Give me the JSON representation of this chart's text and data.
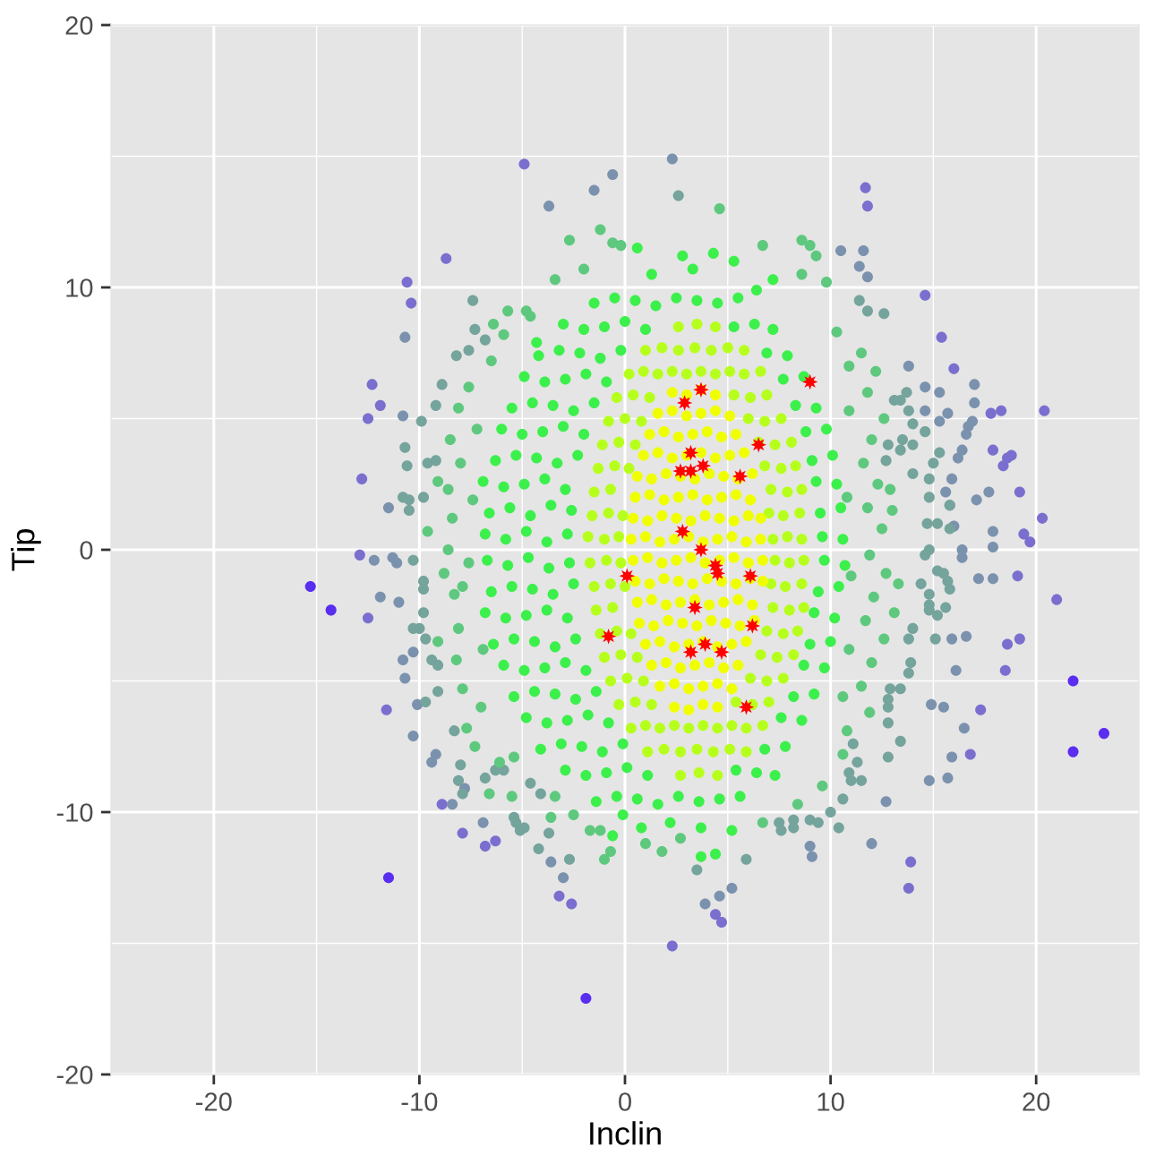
{
  "chart_data": {
    "type": "scatter",
    "xlabel": "Inclin",
    "ylabel": "Tip",
    "xlim": [
      -25,
      25
    ],
    "ylim": [
      -20,
      20
    ],
    "xticks": [
      -20,
      -10,
      0,
      10,
      20
    ],
    "yticks": [
      -20,
      -10,
      0,
      10,
      20
    ],
    "grid": true,
    "marker": "circle",
    "series": [
      {
        "color": "#5a2ef0",
        "x": [
          -15.3,
          -14.3,
          -11.5,
          -1.9,
          21.8,
          23.3,
          21.8
        ],
        "values": [
          -1.4,
          -2.3,
          -12.5,
          -17.1,
          -7.7,
          -7.0,
          -5.0
        ]
      },
      {
        "color": "#7a6fcf",
        "x": [
          -8.7,
          -10.6,
          -10.4,
          -12.3,
          -11.9,
          -12.5,
          -12.8,
          -12.9,
          -12.5,
          -11.6,
          -4.9,
          2.3,
          -3.2,
          -2.6,
          4.4,
          4.7,
          11.7,
          11.8,
          14.6,
          15.4,
          16.0,
          20.4,
          17.8,
          18.3,
          17.9,
          18.8,
          18.4,
          18.6,
          19.2,
          20.3,
          19.4,
          19.7,
          19.1,
          21.0,
          18.6,
          19.2,
          18.5,
          17.3,
          13.9,
          13.8,
          -8.9,
          -7.9,
          -6.8,
          -6.3,
          16.8
        ],
        "values": [
          11.1,
          10.2,
          9.4,
          6.3,
          5.5,
          5.0,
          2.7,
          -0.2,
          -2.6,
          -6.1,
          14.7,
          -15.1,
          -13.2,
          -13.5,
          -13.9,
          -14.2,
          13.8,
          13.1,
          9.7,
          8.1,
          6.9,
          5.3,
          5.2,
          5.3,
          3.8,
          3.6,
          3.2,
          3.5,
          2.2,
          1.2,
          0.6,
          0.3,
          -1.0,
          -1.9,
          -3.6,
          -3.4,
          -4.6,
          -6.1,
          -11.9,
          -12.9,
          -9.7,
          -10.8,
          -11.3,
          -11.1,
          -7.8
        ]
      },
      {
        "color": "#7b92ae",
        "x": [
          -10.7,
          -10.8,
          -11.5,
          -11.3,
          -11.1,
          -12.2,
          -11.9,
          -11.0,
          -10.3,
          -10.8,
          -10.7,
          -10.1,
          -10.3,
          -9.2,
          -9.4,
          -8.4,
          -7.8,
          -3.7,
          -1.5,
          -0.6,
          2.3,
          -3.0,
          -3.6,
          -6.9,
          5.2,
          4.6,
          3.9,
          10.5,
          11.6,
          11.4,
          11.8,
          13.8,
          14.6,
          15.3,
          17.0,
          17.0,
          15.7,
          15.3,
          14.6,
          16.7,
          16.6,
          16.9,
          16.4,
          16.2,
          17.7,
          17.1,
          15.9,
          15.6,
          15.8,
          16.0,
          17.9,
          17.9,
          16.4,
          16.4,
          17.2,
          17.9,
          15.9,
          16.6,
          16.1,
          14.9,
          15.5,
          16.5,
          15.9,
          14.8,
          15.7,
          12.7,
          12.0,
          9.0,
          9.1
        ],
        "values": [
          8.1,
          5.1,
          1.6,
          -0.3,
          -0.5,
          -0.4,
          -1.8,
          -2.0,
          -3.9,
          -4.2,
          -4.9,
          -5.9,
          -7.1,
          -7.8,
          -8.1,
          -9.7,
          -9.1,
          13.1,
          13.7,
          14.3,
          14.9,
          -12.5,
          -11.9,
          -10.4,
          -12.9,
          -13.2,
          -13.5,
          11.4,
          11.4,
          10.8,
          10.4,
          7.0,
          6.2,
          6.0,
          6.3,
          5.6,
          5.2,
          4.9,
          5.3,
          4.7,
          4.4,
          4.9,
          3.8,
          3.5,
          2.2,
          1.9,
          2.7,
          2.2,
          1.7,
          0.9,
          0.7,
          0.1,
          0.0,
          -0.3,
          -1.1,
          -1.1,
          -3.4,
          -3.3,
          -4.6,
          -5.9,
          -6.0,
          -6.8,
          -7.9,
          -8.8,
          -8.7,
          -9.6,
          -11.2,
          -11.3,
          -11.7
        ]
      },
      {
        "color": "#74a49c",
        "x": [
          -8.2,
          -7.6,
          -8.9,
          -9.9,
          -9.2,
          -10.7,
          -10.6,
          -10.8,
          -10.5,
          -10.5,
          -9.8,
          -9.6,
          -9.2,
          -10.3,
          -9.8,
          -9.8,
          -9.8,
          -10.3,
          -10.0,
          -9.7,
          -9.4,
          -9.1,
          -9.1,
          -9.7,
          -8.3,
          -8.0,
          -8.1,
          -7.9,
          -7.4,
          -7.3,
          -6.8,
          2.6,
          -6.8,
          -6.3,
          -5.9,
          -5.4,
          -5.3,
          -5.1,
          -4.9,
          -4.6,
          -4.1,
          -3.7,
          -4.2,
          -2.7,
          3.5,
          5.9,
          8.2,
          9.0,
          9.4,
          10.4,
          10.0,
          10.6,
          10.9,
          11.0,
          11.5,
          11.3,
          11.1,
          12.8,
          13.4,
          12.8,
          12.8,
          12.8,
          12.9,
          13.4,
          13.8,
          15.5,
          15.8,
          14.8,
          14.8,
          15.2,
          15.6,
          15.1,
          14.8,
          15.2,
          15.7,
          14.4,
          14.0,
          13.8,
          13.9,
          15.3,
          15.0,
          14.8,
          14.7,
          15.8,
          14.0,
          14.6,
          13.8,
          14.0,
          13.7,
          13.1,
          13.4,
          13.5,
          14.0,
          13.4,
          12.8,
          12.7,
          14.8,
          15.2,
          15.8,
          14.8,
          14.6,
          11.4,
          11.8,
          12.6,
          7.5,
          8.2,
          7.6
        ],
        "values": [
          7.4,
          7.6,
          6.3,
          4.9,
          5.5,
          3.9,
          3.2,
          2.0,
          1.9,
          1.5,
          2.0,
          3.3,
          3.4,
          -0.4,
          -1.2,
          -1.5,
          -2.4,
          -3.0,
          -3.0,
          -3.4,
          -4.2,
          -4.4,
          -5.4,
          -5.8,
          -6.9,
          -8.2,
          -8.8,
          -9.3,
          9.5,
          8.4,
          8.0,
          13.5,
          -8.7,
          -8.4,
          -8.4,
          -10.2,
          -10.4,
          -10.7,
          -10.6,
          -8.9,
          -9.3,
          -10.8,
          -11.4,
          -11.8,
          -12.2,
          -11.8,
          -10.3,
          -10.3,
          -10.4,
          -10.6,
          -10.0,
          -9.5,
          -8.5,
          -8.8,
          -8.8,
          -8.1,
          -7.4,
          -7.9,
          -7.3,
          -6.6,
          -6.0,
          -5.7,
          -5.3,
          -5.3,
          -4.7,
          -0.9,
          -1.5,
          -2.1,
          -2.3,
          -2.5,
          -2.2,
          -3.4,
          -1.7,
          -0.8,
          -1.2,
          -1.3,
          -3.0,
          -3.4,
          -4.3,
          3.7,
          3.3,
          2.7,
          1.0,
          1.7,
          2.9,
          4.5,
          5.3,
          4.8,
          6.0,
          5.7,
          5.7,
          4.2,
          4.0,
          3.8,
          4.0,
          3.4,
          2.0,
          1.0,
          0.8,
          0.0,
          -0.2,
          9.5,
          9.1,
          9.0,
          -10.4,
          -10.6,
          -10.7
        ]
      },
      {
        "color": "#5ec97e",
        "x": [
          -8.5,
          -8.1,
          -9.1,
          -8.6,
          -9.6,
          -9.1,
          -7.7,
          -2.7,
          -1.2,
          -0.6,
          -0.2,
          4.6,
          6.7,
          -5.7,
          -4.8,
          -4.6,
          -5.9,
          -1.0,
          -0.7,
          -1.7,
          -1.2,
          1.0,
          1.8,
          8.6,
          9.0,
          9.3,
          -8.3,
          -7.9,
          -8.1,
          -5.4,
          -5.5,
          -3.4,
          -2.5,
          11.5,
          12.2,
          11.8,
          12.6,
          12.0,
          11.6,
          12.3,
          11.8,
          12.5,
          11.9,
          12.7,
          12.1,
          11.7,
          12.6,
          12.0,
          11.5,
          11.9,
          10.8,
          10.3,
          10.9,
          13.0,
          13.3,
          13.1,
          12.9,
          10.6,
          9.6,
          -7.3,
          -6.6,
          -7.6,
          -6.5,
          -8.6,
          -8.8,
          -8.4,
          -8.0,
          -8.2,
          -7.9,
          9.8,
          -7.6,
          -7.4,
          -7.2,
          -6.9,
          -7.0,
          10.9,
          10.8,
          11.0,
          10.9,
          10.6,
          -6.1,
          -3.6,
          2.7,
          6.7,
          8.4,
          -3.4,
          -2.0,
          8.6,
          -6.4
        ],
        "values": [
          4.2,
          5.4,
          2.6,
          2.3,
          0.7,
          -3.5,
          -6.8,
          11.8,
          12.2,
          11.7,
          11.6,
          13.0,
          11.6,
          9.1,
          9.1,
          8.9,
          8.2,
          -11.8,
          -11.5,
          -10.7,
          -10.7,
          -11.2,
          -11.5,
          11.8,
          11.6,
          11.2,
          -1.7,
          -1.4,
          -3.0,
          -7.9,
          -9.4,
          -9.4,
          -10.1,
          7.5,
          6.8,
          6.0,
          5.0,
          4.2,
          3.3,
          2.5,
          1.6,
          0.8,
          -0.2,
          -0.9,
          -1.8,
          -2.7,
          -3.4,
          -4.3,
          -5.2,
          -6.2,
          -6.9,
          8.3,
          7.0,
          1.5,
          -1.3,
          -2.4,
          2.3,
          -7.8,
          -9.0,
          -7.5,
          -9.3,
          6.2,
          7.2,
          0.0,
          -0.9,
          1.2,
          3.3,
          -4.2,
          -5.3,
          10.2,
          -0.5,
          1.9,
          4.6,
          -3.8,
          -6.0,
          5.3,
          2.0,
          -1.0,
          -3.8,
          -5.6,
          -8.1,
          -10.2,
          -11.0,
          -10.4,
          -9.7,
          10.3,
          10.7,
          10.5,
          8.6
        ]
      },
      {
        "color": "#3cf04c",
        "x": [
          -6.8,
          -5.8,
          -4.8,
          -3.8,
          -2.8,
          9.6,
          10.6,
          -6.6,
          -5.6,
          -4.6,
          -3.6,
          -2.6,
          9.5,
          10.5,
          -6.9,
          -5.9,
          -4.9,
          -3.9,
          -2.9,
          9.3,
          10.3,
          -6.3,
          -5.3,
          -4.3,
          -3.3,
          -2.3,
          9.1,
          10.1,
          -6.0,
          -5.0,
          -4.0,
          -3.0,
          -2.0,
          8.8,
          9.8,
          -5.5,
          -4.5,
          -3.5,
          -2.5,
          -1.5,
          8.3,
          9.3,
          -4.9,
          -3.9,
          -2.9,
          -1.9,
          -0.9,
          7.7,
          8.7,
          -4.2,
          -3.2,
          -2.2,
          -1.2,
          -0.2,
          6.9,
          7.9,
          -3.0,
          -2.0,
          -1.0,
          0.0,
          1.0,
          5.3,
          6.3,
          7.2,
          -1.5,
          -0.5,
          0.5,
          1.5,
          2.5,
          3.5,
          4.5,
          5.5,
          0.6,
          2.8,
          4.3,
          5.3,
          1.3,
          3.3,
          7.2,
          -4.3,
          6.4,
          -6.7,
          -5.7,
          -4.7,
          -3.7,
          -2.7,
          9.7,
          10.7,
          -6.5,
          -5.5,
          -4.5,
          -3.5,
          -2.5,
          9.4,
          10.4,
          -6.8,
          -5.8,
          -4.8,
          -3.8,
          -2.8,
          9.2,
          10.2,
          -6.4,
          -5.4,
          -4.4,
          -3.4,
          -2.4,
          9.0,
          10.0,
          -5.9,
          -4.9,
          -3.9,
          -2.9,
          -1.9,
          8.7,
          9.7,
          -5.4,
          -4.4,
          -3.4,
          -2.4,
          -1.4,
          8.2,
          9.2,
          -4.8,
          -3.8,
          -2.8,
          -1.8,
          -0.8,
          7.6,
          8.6,
          -4.1,
          -3.1,
          -2.1,
          -1.1,
          -0.1,
          6.8,
          7.8,
          -2.9,
          -1.9,
          -0.9,
          0.1,
          1.1,
          5.4,
          6.4,
          7.3,
          -1.4,
          -0.4,
          0.6,
          1.6,
          2.6,
          3.6,
          4.6,
          5.6,
          -0.6,
          0.8,
          3.7,
          3.7,
          4.4,
          5.2,
          2.2,
          -0.1
        ],
        "values": [
          0.6,
          0.4,
          0.7,
          0.3,
          0.6,
          0.5,
          0.4,
          1.4,
          1.6,
          1.3,
          1.7,
          1.5,
          1.4,
          1.6,
          2.6,
          2.4,
          2.5,
          2.7,
          2.3,
          2.6,
          2.5,
          3.4,
          3.6,
          3.5,
          3.3,
          3.6,
          3.4,
          3.6,
          4.6,
          4.4,
          4.5,
          4.7,
          4.4,
          4.5,
          4.6,
          5.4,
          5.6,
          5.5,
          5.3,
          5.6,
          5.5,
          5.4,
          6.6,
          6.4,
          6.5,
          6.7,
          6.4,
          6.5,
          6.6,
          7.4,
          7.6,
          7.5,
          7.3,
          7.6,
          7.5,
          7.4,
          8.6,
          8.4,
          8.5,
          8.7,
          8.4,
          8.5,
          8.6,
          8.4,
          9.4,
          9.6,
          9.5,
          9.3,
          9.6,
          9.5,
          9.4,
          9.6,
          11.5,
          11.2,
          11.3,
          11.0,
          10.5,
          10.7,
          10.3,
          7.9,
          9.9,
          -0.4,
          -0.6,
          -0.3,
          -0.7,
          -0.5,
          -0.4,
          -0.6,
          -1.6,
          -1.4,
          -1.5,
          -1.7,
          -1.3,
          -1.6,
          -1.4,
          -2.4,
          -2.6,
          -2.5,
          -2.3,
          -2.6,
          -2.4,
          -2.6,
          -3.6,
          -3.4,
          -3.5,
          -3.7,
          -3.4,
          -3.6,
          -3.5,
          -4.4,
          -4.6,
          -4.5,
          -4.3,
          -4.6,
          -4.4,
          -4.5,
          -5.6,
          -5.4,
          -5.5,
          -5.7,
          -5.4,
          -5.6,
          -5.5,
          -6.4,
          -6.6,
          -6.5,
          -6.3,
          -6.6,
          -6.4,
          -6.5,
          -7.6,
          -7.4,
          -7.5,
          -7.7,
          -7.4,
          -7.6,
          -7.5,
          -8.4,
          -8.6,
          -8.5,
          -8.3,
          -8.6,
          -8.4,
          -8.5,
          -8.6,
          -9.6,
          -9.4,
          -9.5,
          -9.7,
          -9.4,
          -9.6,
          -9.5,
          -9.4,
          -10.9,
          -10.6,
          -10.6,
          -11.7,
          -11.6,
          -10.7,
          -10.4,
          -10.1
        ]
      },
      {
        "color": "#b6ff1c",
        "x": [
          -1.8,
          -1.0,
          -0.3,
          7.2,
          7.9,
          8.6,
          -1.6,
          -0.8,
          -0.1,
          7.0,
          7.7,
          8.5,
          -1.5,
          -0.7,
          7.1,
          7.9,
          8.6,
          -1.3,
          -0.5,
          0.2,
          6.8,
          7.6,
          8.3,
          -1.1,
          -0.3,
          0.5,
          6.5,
          7.3,
          8.1,
          -0.8,
          0.0,
          0.8,
          6.0,
          6.8,
          7.6,
          -0.4,
          0.4,
          1.2,
          5.3,
          6.1,
          6.9,
          0.2,
          0.9,
          1.6,
          2.3,
          3.0,
          3.7,
          4.4,
          5.1,
          5.8,
          6.6,
          1.0,
          1.8,
          2.6,
          3.4,
          4.2,
          5.0,
          5.8,
          2.6,
          3.5,
          4.4,
          -1.7,
          -0.9,
          -0.2,
          7.3,
          8.0,
          8.7,
          -1.5,
          -0.7,
          0.0,
          7.1,
          7.8,
          8.6,
          -1.4,
          -0.6,
          7.2,
          8.0,
          8.7,
          -1.2,
          -0.4,
          0.3,
          6.9,
          7.7,
          8.4,
          -1.0,
          -0.2,
          0.6,
          6.6,
          7.4,
          8.2,
          -0.7,
          0.1,
          0.9,
          6.1,
          6.9,
          7.7,
          -0.3,
          0.5,
          1.3,
          5.4,
          6.2,
          7.0,
          0.3,
          1.0,
          1.7,
          2.4,
          3.1,
          3.8,
          4.5,
          5.2,
          5.9,
          6.7,
          1.1,
          1.9,
          2.7,
          3.5,
          4.3,
          5.1,
          5.9,
          2.7,
          3.6,
          4.5
        ],
        "values": [
          0.5,
          0.4,
          0.5,
          0.4,
          0.5,
          0.4,
          1.3,
          1.4,
          1.3,
          1.4,
          1.3,
          1.4,
          2.2,
          2.3,
          2.3,
          2.2,
          2.3,
          3.1,
          3.2,
          3.1,
          3.2,
          3.1,
          3.2,
          4.0,
          4.1,
          4.0,
          4.1,
          4.0,
          4.1,
          4.9,
          5.0,
          4.9,
          5.0,
          4.9,
          5.0,
          5.8,
          5.9,
          5.8,
          5.9,
          5.8,
          5.9,
          6.7,
          6.8,
          6.7,
          6.8,
          6.7,
          6.8,
          6.7,
          6.8,
          6.7,
          6.8,
          7.6,
          7.7,
          7.6,
          7.7,
          7.6,
          7.7,
          7.6,
          8.5,
          8.6,
          8.5,
          -0.5,
          -0.4,
          -0.5,
          -0.4,
          -0.5,
          -0.4,
          -1.4,
          -1.3,
          -1.4,
          -1.3,
          -1.4,
          -1.3,
          -2.3,
          -2.2,
          -2.2,
          -2.3,
          -2.2,
          -3.2,
          -3.1,
          -3.2,
          -3.1,
          -3.2,
          -3.1,
          -4.1,
          -4.0,
          -4.1,
          -4.0,
          -4.1,
          -4.0,
          -5.0,
          -4.9,
          -5.0,
          -4.9,
          -5.0,
          -4.9,
          -5.9,
          -5.8,
          -5.9,
          -5.8,
          -5.9,
          -5.8,
          -6.8,
          -6.7,
          -6.8,
          -6.7,
          -6.8,
          -6.7,
          -6.8,
          -6.7,
          -6.8,
          -6.7,
          -7.7,
          -7.6,
          -7.7,
          -7.6,
          -7.7,
          -7.6,
          -7.7,
          -8.6,
          -8.5,
          -8.6
        ]
      },
      {
        "color": "#f0ff00",
        "x": [
          2.3,
          3.0,
          3.7,
          4.4,
          1.6,
          2.3,
          3.0,
          3.7,
          4.4,
          5.1,
          1.2,
          1.9,
          2.6,
          3.3,
          4.0,
          4.7,
          5.4,
          0.9,
          1.6,
          2.3,
          3.0,
          3.7,
          4.4,
          5.1,
          5.8,
          0.6,
          1.3,
          2.0,
          2.7,
          3.4,
          4.1,
          4.8,
          5.5,
          6.2,
          0.5,
          1.2,
          1.9,
          2.6,
          3.3,
          4.0,
          4.7,
          5.4,
          6.1,
          0.4,
          1.1,
          1.8,
          2.5,
          3.2,
          3.9,
          4.6,
          5.3,
          6.0,
          6.6,
          0.3,
          1.0,
          1.7,
          2.4,
          3.1,
          3.8,
          4.5,
          5.2,
          5.9,
          6.6,
          0.4,
          1.1,
          1.8,
          2.5,
          3.2,
          3.9,
          4.6,
          5.3,
          6.0,
          6.7,
          0.5,
          1.2,
          1.9,
          2.6,
          3.3,
          4.0,
          4.7,
          5.4,
          6.1,
          6.7,
          0.6,
          1.3,
          2.0,
          2.7,
          3.4,
          4.1,
          4.8,
          5.5,
          6.2,
          0.7,
          1.4,
          2.1,
          2.8,
          3.5,
          4.2,
          4.9,
          5.6,
          6.3,
          1.0,
          1.7,
          2.4,
          3.1,
          3.8,
          4.5,
          5.2,
          5.9,
          1.3,
          2.0,
          2.7,
          3.4,
          4.1,
          4.8,
          5.5,
          1.7,
          2.4,
          3.1,
          3.8,
          4.5,
          5.2,
          2.4,
          3.1,
          3.8,
          4.5
        ],
        "values": [
          6.0,
          5.9,
          6.1,
          5.9,
          5.2,
          5.3,
          5.1,
          5.2,
          5.3,
          5.1,
          4.4,
          4.5,
          4.3,
          4.4,
          4.5,
          4.3,
          4.4,
          3.6,
          3.7,
          3.5,
          3.6,
          3.7,
          3.5,
          3.6,
          3.7,
          2.8,
          2.7,
          2.9,
          2.8,
          2.7,
          2.9,
          2.8,
          2.7,
          2.9,
          2.0,
          2.1,
          1.9,
          2.0,
          2.1,
          1.9,
          2.0,
          2.1,
          1.9,
          1.2,
          1.1,
          1.3,
          1.2,
          1.1,
          1.3,
          1.2,
          1.1,
          1.3,
          1.2,
          0.4,
          0.5,
          0.3,
          0.4,
          0.5,
          0.3,
          0.4,
          0.5,
          0.3,
          0.4,
          -0.4,
          -0.3,
          -0.5,
          -0.4,
          -0.3,
          -0.5,
          -0.4,
          -0.3,
          -0.5,
          -0.4,
          -1.2,
          -1.3,
          -1.1,
          -1.2,
          -1.3,
          -1.1,
          -1.2,
          -1.3,
          -1.1,
          -1.2,
          -2.0,
          -1.9,
          -2.1,
          -2.0,
          -1.9,
          -2.1,
          -2.0,
          -1.9,
          -2.1,
          -2.8,
          -2.9,
          -2.7,
          -2.8,
          -2.9,
          -2.7,
          -2.8,
          -2.9,
          -2.7,
          -3.6,
          -3.5,
          -3.7,
          -3.6,
          -3.5,
          -3.7,
          -3.6,
          -3.5,
          -4.4,
          -4.3,
          -4.5,
          -4.4,
          -4.3,
          -4.5,
          -4.4,
          -5.2,
          -5.1,
          -5.3,
          -5.2,
          -5.1,
          -5.3,
          -6.0,
          -6.1,
          -5.9,
          -6.0
        ]
      },
      {
        "color": "#ff0000",
        "marker": "star",
        "x": [
          9.0,
          3.7,
          2.9,
          6.5,
          3.2,
          2.7,
          3.2,
          3.8,
          5.6,
          2.8,
          3.7,
          4.4,
          4.5,
          0.1,
          6.1,
          3.4,
          6.2,
          -0.8,
          3.9,
          3.2,
          4.7,
          5.9
        ],
        "values": [
          6.4,
          6.1,
          5.6,
          4.0,
          3.7,
          3.0,
          3.0,
          3.2,
          2.8,
          0.7,
          0.0,
          -0.6,
          -0.9,
          -1.0,
          -1.0,
          -2.2,
          -2.9,
          -3.3,
          -3.6,
          -3.9,
          -3.9,
          -6.0
        ]
      }
    ]
  }
}
